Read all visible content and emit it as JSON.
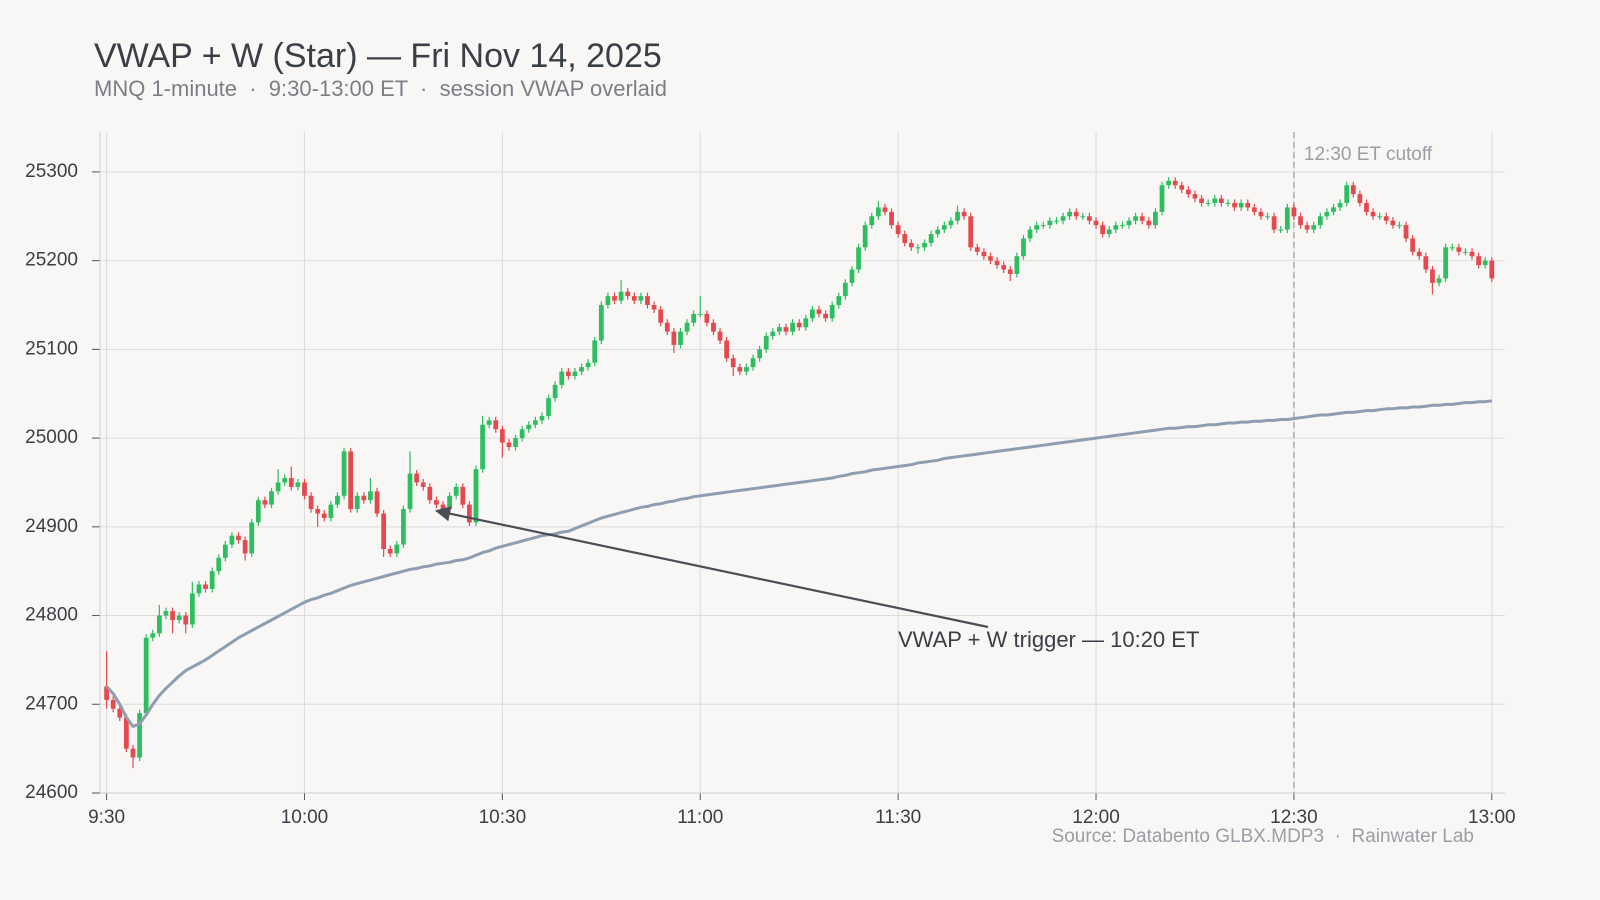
{
  "chart_data": {
    "type": "candlestick",
    "title": "VWAP + W (Star) — Fri Nov 14, 2025",
    "subtitle": "MNQ 1-minute  ·  9:30-13:00 ET  ·  session VWAP overlaid",
    "source": "Source: Databento GLBX.MDP3  ·  Rainwater Lab",
    "up_color": "#2dbe60",
    "down_color": "#e5484d",
    "grid": true,
    "xlim": [
      569,
      782
    ],
    "ylim": [
      24600,
      25345
    ],
    "xticks": [
      {
        "value": 570,
        "label": "9:30"
      },
      {
        "value": 600,
        "label": "10:00"
      },
      {
        "value": 630,
        "label": "10:30"
      },
      {
        "value": 660,
        "label": "11:00"
      },
      {
        "value": 690,
        "label": "11:30"
      },
      {
        "value": 720,
        "label": "12:00"
      },
      {
        "value": 750,
        "label": "12:30"
      },
      {
        "value": 780,
        "label": "13:00"
      }
    ],
    "yticks": [
      24600,
      24700,
      24800,
      24900,
      25000,
      25100,
      25200,
      25300
    ],
    "x": [
      570,
      571,
      572,
      573,
      574,
      575,
      576,
      577,
      578,
      579,
      580,
      581,
      582,
      583,
      584,
      585,
      586,
      587,
      588,
      589,
      590,
      591,
      592,
      593,
      594,
      595,
      596,
      597,
      598,
      599,
      600,
      601,
      602,
      603,
      604,
      605,
      606,
      607,
      608,
      609,
      610,
      611,
      612,
      613,
      614,
      615,
      616,
      617,
      618,
      619,
      620,
      621,
      622,
      623,
      624,
      625,
      626,
      627,
      628,
      629,
      630,
      631,
      632,
      633,
      634,
      635,
      636,
      637,
      638,
      639,
      640,
      641,
      642,
      643,
      644,
      645,
      646,
      647,
      648,
      649,
      650,
      651,
      652,
      653,
      654,
      655,
      656,
      657,
      658,
      659,
      660,
      661,
      662,
      663,
      664,
      665,
      666,
      667,
      668,
      669,
      670,
      671,
      672,
      673,
      674,
      675,
      676,
      677,
      678,
      679,
      680,
      681,
      682,
      683,
      684,
      685,
      686,
      687,
      688,
      689,
      690,
      691,
      692,
      693,
      694,
      695,
      696,
      697,
      698,
      699,
      700,
      701,
      702,
      703,
      704,
      705,
      706,
      707,
      708,
      709,
      710,
      711,
      712,
      713,
      714,
      715,
      716,
      717,
      718,
      719,
      720,
      721,
      722,
      723,
      724,
      725,
      726,
      727,
      728,
      729,
      730,
      731,
      732,
      733,
      734,
      735,
      736,
      737,
      738,
      739,
      740,
      741,
      742,
      743,
      744,
      745,
      746,
      747,
      748,
      749,
      750,
      751,
      752,
      753,
      754,
      755,
      756,
      757,
      758,
      759,
      760,
      761,
      762,
      763,
      764,
      765,
      766,
      767,
      768,
      769,
      770,
      771,
      772,
      773,
      774,
      775,
      776,
      777,
      778,
      779,
      780
    ],
    "open": [
      24720,
      24705,
      24695,
      24685,
      24650,
      24640,
      24690,
      24775,
      24780,
      24800,
      24805,
      24795,
      24800,
      24790,
      24825,
      24835,
      24830,
      24850,
      24865,
      24880,
      24890,
      24885,
      24870,
      24905,
      24930,
      24925,
      24940,
      24950,
      24955,
      24945,
      24950,
      24935,
      24920,
      24915,
      24910,
      24925,
      24935,
      24985,
      24920,
      24935,
      24930,
      24940,
      24915,
      24875,
      24870,
      24880,
      24920,
      24960,
      24950,
      24945,
      24930,
      24925,
      24920,
      24935,
      24945,
      24925,
      24905,
      24965,
      25015,
      25020,
      25010,
      24995,
      24990,
      25000,
      25010,
      25015,
      25020,
      25025,
      25045,
      25060,
      25075,
      25070,
      25075,
      25080,
      25085,
      25110,
      25150,
      25160,
      25155,
      25165,
      25160,
      25155,
      25160,
      25150,
      25145,
      25130,
      25120,
      25105,
      25120,
      25130,
      25140,
      25140,
      25130,
      25120,
      25110,
      25090,
      25080,
      25075,
      25080,
      25090,
      25100,
      25115,
      25120,
      25125,
      25120,
      25130,
      25125,
      25135,
      25145,
      25140,
      25135,
      25150,
      25160,
      25175,
      25190,
      25215,
      25240,
      25250,
      25260,
      25255,
      25240,
      25230,
      25220,
      25215,
      25215,
      25220,
      25230,
      25235,
      25240,
      25245,
      25255,
      25250,
      25215,
      25210,
      25205,
      25200,
      25195,
      25190,
      25185,
      25205,
      25225,
      25235,
      25240,
      25240,
      25245,
      25245,
      25250,
      25255,
      25250,
      25250,
      25245,
      25240,
      25230,
      25235,
      25240,
      25240,
      25245,
      25250,
      25245,
      25240,
      25255,
      25285,
      25290,
      25285,
      25280,
      25275,
      25270,
      25265,
      25265,
      25270,
      25265,
      25265,
      25260,
      25265,
      25260,
      25255,
      25250,
      25250,
      25235,
      25235,
      25260,
      25250,
      25240,
      25235,
      25240,
      25250,
      25255,
      25260,
      25265,
      25285,
      25275,
      25265,
      25255,
      25250,
      25250,
      25245,
      25240,
      25240,
      25225,
      25210,
      25205,
      25190,
      25175,
      25180,
      25215,
      25215,
      25210,
      25210,
      25205,
      25195,
      25200
    ],
    "high": [
      24760,
      24709,
      24699,
      24689,
      24654,
      24694,
      24779,
      24784,
      24812,
      24809,
      24809,
      24804,
      24804,
      24838,
      24839,
      24839,
      24854,
      24869,
      24884,
      24894,
      24894,
      24889,
      24909,
      24934,
      24934,
      24944,
      24965,
      24959,
      24968,
      24954,
      24954,
      24939,
      24924,
      24919,
      24929,
      24939,
      24989,
      24989,
      24939,
      24939,
      24955,
      24944,
      24919,
      24879,
      24884,
      24924,
      24985,
      24964,
      24954,
      24949,
      24934,
      24929,
      24939,
      24949,
      24949,
      24929,
      24969,
      25025,
      25024,
      25024,
      25014,
      24999,
      25004,
      25014,
      25019,
      25024,
      25029,
      25049,
      25064,
      25079,
      25079,
      25079,
      25084,
      25089,
      25114,
      25154,
      25164,
      25164,
      25178,
      25169,
      25164,
      25164,
      25164,
      25154,
      25149,
      25134,
      25124,
      25124,
      25134,
      25144,
      25160,
      25144,
      25134,
      25124,
      25114,
      25094,
      25084,
      25084,
      25094,
      25104,
      25119,
      25124,
      25129,
      25129,
      25134,
      25134,
      25139,
      25149,
      25149,
      25144,
      25154,
      25164,
      25179,
      25194,
      25219,
      25244,
      25254,
      25267,
      25264,
      25259,
      25244,
      25234,
      25224,
      25219,
      25224,
      25234,
      25239,
      25244,
      25249,
      25262,
      25259,
      25254,
      25219,
      25214,
      25209,
      25204,
      25199,
      25194,
      25209,
      25229,
      25239,
      25244,
      25244,
      25249,
      25249,
      25254,
      25259,
      25259,
      25254,
      25254,
      25249,
      25244,
      25239,
      25244,
      25244,
      25249,
      25254,
      25254,
      25249,
      25259,
      25289,
      25294,
      25294,
      25289,
      25284,
      25279,
      25274,
      25269,
      25274,
      25274,
      25269,
      25269,
      25269,
      25269,
      25264,
      25259,
      25254,
      25254,
      25239,
      25264,
      25264,
      25254,
      25244,
      25244,
      25254,
      25259,
      25264,
      25269,
      25289,
      25289,
      25279,
      25269,
      25259,
      25254,
      25254,
      25249,
      25244,
      25244,
      25229,
      25214,
      25209,
      25194,
      25184,
      25219,
      25219,
      25219,
      25214,
      25214,
      25209,
      25204,
      25204
    ],
    "low": [
      24695,
      24691,
      24681,
      24646,
      24628,
      24636,
      24686,
      24771,
      24776,
      24796,
      24780,
      24791,
      24780,
      24786,
      24821,
      24826,
      24826,
      24846,
      24861,
      24876,
      24881,
      24862,
      24866,
      24901,
      24921,
      24921,
      24936,
      24946,
      24941,
      24941,
      24931,
      24916,
      24900,
      24906,
      24906,
      24921,
      24931,
      24916,
      24916,
      24926,
      24926,
      24911,
      24866,
      24866,
      24866,
      24876,
      24916,
      24946,
      24941,
      24926,
      24921,
      24916,
      24916,
      24931,
      24921,
      24901,
      24901,
      24961,
      25011,
      25006,
      24978,
      24986,
      24986,
      24996,
      25006,
      25011,
      25016,
      25021,
      25041,
      25056,
      25066,
      25066,
      25071,
      25076,
      25081,
      25106,
      25146,
      25151,
      25151,
      25156,
      25151,
      25151,
      25146,
      25141,
      25126,
      25116,
      25096,
      25101,
      25116,
      25126,
      25136,
      25126,
      25116,
      25106,
      25086,
      25070,
      25071,
      25071,
      25076,
      25086,
      25096,
      25111,
      25116,
      25116,
      25116,
      25121,
      25121,
      25131,
      25136,
      25131,
      25131,
      25146,
      25156,
      25171,
      25186,
      25211,
      25236,
      25246,
      25251,
      25236,
      25226,
      25216,
      25211,
      25208,
      25211,
      25216,
      25226,
      25231,
      25236,
      25241,
      25246,
      25211,
      25206,
      25201,
      25196,
      25191,
      25186,
      25177,
      25181,
      25201,
      25221,
      25231,
      25236,
      25236,
      25241,
      25241,
      25246,
      25246,
      25246,
      25241,
      25236,
      25226,
      25226,
      25231,
      25236,
      25236,
      25241,
      25241,
      25236,
      25236,
      25251,
      25281,
      25281,
      25276,
      25271,
      25266,
      25261,
      25261,
      25261,
      25261,
      25261,
      25256,
      25256,
      25256,
      25251,
      25246,
      25246,
      25231,
      25231,
      25231,
      25246,
      25236,
      25231,
      25231,
      25236,
      25246,
      25251,
      25256,
      25261,
      25271,
      25261,
      25251,
      25246,
      25246,
      25241,
      25236,
      25236,
      25221,
      25206,
      25201,
      25186,
      25162,
      25171,
      25176,
      25211,
      25206,
      25206,
      25201,
      25191,
      25191,
      25176
    ],
    "close": [
      24705,
      24695,
      24685,
      24650,
      24640,
      24690,
      24775,
      24780,
      24800,
      24805,
      24795,
      24800,
      24790,
      24825,
      24835,
      24830,
      24850,
      24865,
      24880,
      24890,
      24885,
      24870,
      24905,
      24930,
      24925,
      24940,
      24950,
      24955,
      24945,
      24950,
      24935,
      24920,
      24915,
      24910,
      24925,
      24935,
      24985,
      24920,
      24935,
      24930,
      24940,
      24915,
      24875,
      24870,
      24880,
      24920,
      24960,
      24950,
      24945,
      24930,
      24925,
      24920,
      24935,
      24945,
      24925,
      24905,
      24965,
      25015,
      25020,
      25010,
      24995,
      24990,
      25000,
      25010,
      25015,
      25020,
      25025,
      25045,
      25060,
      25075,
      25070,
      25075,
      25080,
      25085,
      25110,
      25150,
      25160,
      25155,
      25165,
      25160,
      25155,
      25160,
      25150,
      25145,
      25130,
      25120,
      25105,
      25120,
      25130,
      25140,
      25140,
      25130,
      25120,
      25110,
      25090,
      25080,
      25075,
      25080,
      25090,
      25100,
      25115,
      25120,
      25125,
      25120,
      25130,
      25125,
      25135,
      25145,
      25140,
      25135,
      25150,
      25160,
      25175,
      25190,
      25215,
      25240,
      25250,
      25260,
      25255,
      25240,
      25230,
      25220,
      25215,
      25215,
      25220,
      25230,
      25235,
      25240,
      25245,
      25255,
      25250,
      25215,
      25210,
      25205,
      25200,
      25195,
      25190,
      25185,
      25205,
      25225,
      25235,
      25240,
      25240,
      25245,
      25245,
      25250,
      25255,
      25250,
      25250,
      25245,
      25240,
      25230,
      25235,
      25240,
      25240,
      25245,
      25250,
      25245,
      25240,
      25255,
      25285,
      25290,
      25285,
      25280,
      25275,
      25270,
      25265,
      25265,
      25270,
      25265,
      25265,
      25260,
      25265,
      25260,
      25255,
      25250,
      25250,
      25235,
      25235,
      25260,
      25250,
      25240,
      25235,
      25240,
      25250,
      25255,
      25260,
      25265,
      25285,
      25275,
      25265,
      25255,
      25250,
      25250,
      25245,
      25240,
      25240,
      25225,
      25210,
      25205,
      25190,
      25175,
      25180,
      25215,
      25215,
      25210,
      25210,
      25205,
      25195,
      25200,
      25180
    ],
    "overlays": [
      {
        "type": "line",
        "color": "#8e9db0",
        "values": [
          24720,
          24712,
          24700,
          24685,
          24675,
          24678,
          24688,
          24700,
          24710,
          24718,
          24725,
          24732,
          24738,
          24742,
          24746,
          24750,
          24755,
          24760,
          24765,
          24770,
          24775,
          24779,
          24783,
          24787,
          24791,
          24795,
          24799,
          24803,
          24807,
          24811,
          24815,
          24818,
          24820,
          24823,
          24825,
          24828,
          24831,
          24834,
          24836,
          24838,
          24840,
          24842,
          24844,
          24846,
          24848,
          24850,
          24852,
          24853,
          24855,
          24856,
          24858,
          24859,
          24860,
          24862,
          24863,
          24865,
          24868,
          24871,
          24873,
          24876,
          24878,
          24880,
          24882,
          24884,
          24886,
          24888,
          24890,
          24891,
          24892,
          24894,
          24895,
          24898,
          24901,
          24904,
          24907,
          24910,
          24912,
          24914,
          24916,
          24918,
          24920,
          24922,
          24923,
          24925,
          24926,
          24928,
          24929,
          24931,
          24932,
          24934,
          24935,
          24936,
          24937,
          24938,
          24939,
          24940,
          24941,
          24942,
          24943,
          24944,
          24945,
          24946,
          24947,
          24948,
          24949,
          24950,
          24951,
          24952,
          24953,
          24954,
          24955,
          24957,
          24958,
          24960,
          24961,
          24962,
          24964,
          24965,
          24966,
          24967,
          24968,
          24969,
          24970,
          24972,
          24973,
          24974,
          24975,
          24977,
          24978,
          24979,
          24980,
          24981,
          24982,
          24983,
          24984,
          24985,
          24986,
          24987,
          24988,
          24989,
          24990,
          24991,
          24992,
          24993,
          24994,
          24995,
          24996,
          24997,
          24998,
          24999,
          25000,
          25001,
          25002,
          25003,
          25004,
          25005,
          25006,
          25007,
          25008,
          25009,
          25010,
          25011,
          25011,
          25012,
          25013,
          25013,
          25014,
          25015,
          25015,
          25016,
          25017,
          25017,
          25018,
          25018,
          25019,
          25019,
          25020,
          25020,
          25021,
          25021,
          25022,
          25023,
          25024,
          25025,
          25026,
          25026,
          25027,
          25028,
          25029,
          25029,
          25030,
          25031,
          25031,
          25032,
          25033,
          25033,
          25034,
          25034,
          25035,
          25035,
          25036,
          25037,
          25037,
          25038,
          25038,
          25039,
          25040,
          25040,
          25041,
          25041,
          25042
        ]
      }
    ],
    "cutoff": {
      "x": 750,
      "label": "12:30 ET cutoff"
    },
    "annotation": {
      "text": "VWAP + W trigger — 10:20 ET",
      "x": 620,
      "y": 24918
    }
  }
}
